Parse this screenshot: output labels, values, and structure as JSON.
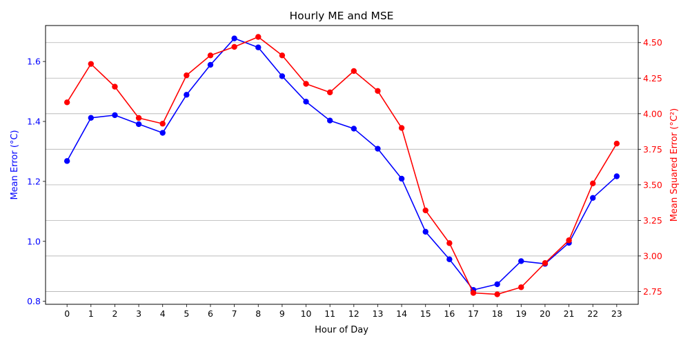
{
  "chart_data": {
    "type": "line",
    "title": "Hourly ME and MSE",
    "xlabel": "Hour of Day",
    "x": [
      0,
      1,
      2,
      3,
      4,
      5,
      6,
      7,
      8,
      9,
      10,
      11,
      12,
      13,
      14,
      15,
      16,
      17,
      18,
      19,
      20,
      21,
      22,
      23
    ],
    "x_tick_labels": [
      "0",
      "1",
      "2",
      "3",
      "4",
      "5",
      "6",
      "7",
      "8",
      "9",
      "10",
      "11",
      "12",
      "13",
      "14",
      "15",
      "16",
      "17",
      "18",
      "19",
      "20",
      "21",
      "22",
      "23"
    ],
    "grid": "horizontal lines at right-axis ticks",
    "left_axis": {
      "label": "Mean Error (°C)",
      "color": "#0000ff",
      "ylim": [
        0.79,
        1.72
      ],
      "ticks": [
        0.8,
        1.0,
        1.2,
        1.4,
        1.6
      ],
      "tick_labels": [
        "0.8",
        "1.0",
        "1.2",
        "1.4",
        "1.6"
      ]
    },
    "right_axis": {
      "label": "Mean Squared Error (°C²)",
      "color": "#ff0000",
      "ylim": [
        2.66,
        4.62
      ],
      "ticks": [
        2.75,
        3.0,
        3.25,
        3.5,
        3.75,
        4.0,
        4.25,
        4.5
      ],
      "tick_labels": [
        "2.75",
        "3.00",
        "3.25",
        "3.50",
        "3.75",
        "4.00",
        "4.25",
        "4.50"
      ]
    },
    "series": [
      {
        "axis": "left",
        "color": "#0000ff",
        "values": [
          1.268,
          1.412,
          1.421,
          1.391,
          1.362,
          1.489,
          1.589,
          1.677,
          1.647,
          1.551,
          1.466,
          1.403,
          1.376,
          1.309,
          1.209,
          1.032,
          0.94,
          0.838,
          0.857,
          0.934,
          0.925,
          0.995,
          1.145,
          1.217
        ]
      },
      {
        "axis": "right",
        "color": "#ff0000",
        "values": [
          4.08,
          4.35,
          4.19,
          3.97,
          3.93,
          4.27,
          4.41,
          4.47,
          4.54,
          4.41,
          4.21,
          4.15,
          4.3,
          4.16,
          3.9,
          3.32,
          3.09,
          2.74,
          2.73,
          2.78,
          2.95,
          3.11,
          3.51,
          3.79
        ]
      }
    ]
  }
}
